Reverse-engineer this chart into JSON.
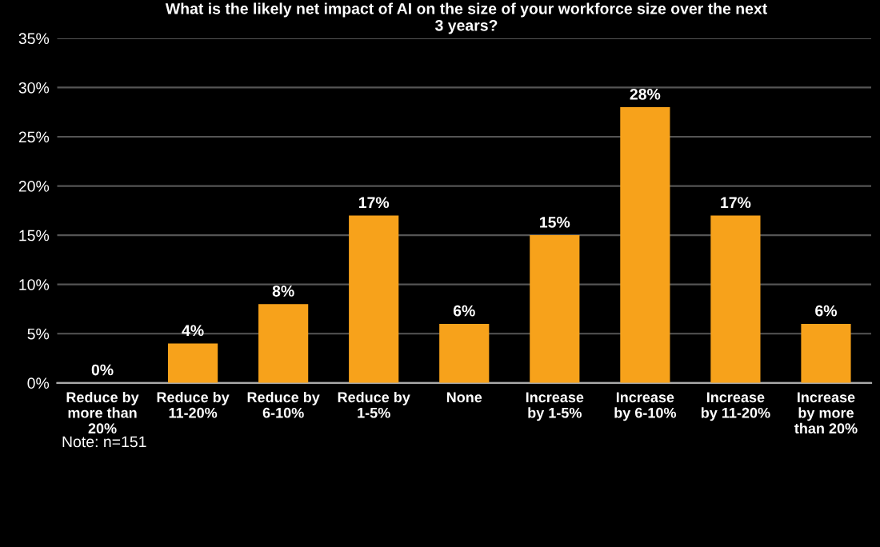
{
  "chart_data": {
    "type": "bar",
    "title": "What is the likely net impact of AI on the size of your workforce size over the next\n3 years?",
    "categories": [
      "Reduce by\nmore than\n20%",
      "Reduce by\n11-20%",
      "Reduce by\n6-10%",
      "Reduce by\n1-5%",
      "None",
      "Increase\nby 1-5%",
      "Increase\nby 6-10%",
      "Increase\nby 11-20%",
      "Increase\nby more\nthan 20%"
    ],
    "values": [
      0,
      4,
      8,
      17,
      6,
      15,
      28,
      17,
      6
    ],
    "value_labels": [
      "0%",
      "4%",
      "8%",
      "17%",
      "6%",
      "15%",
      "28%",
      "17%",
      "6%"
    ],
    "color": "#f7a21b",
    "ylim": [
      0,
      35
    ],
    "yticks": [
      {
        "value": 0,
        "label": "0%"
      },
      {
        "value": 5,
        "label": "5%"
      },
      {
        "value": 10,
        "label": "10%"
      },
      {
        "value": 15,
        "label": "15%"
      },
      {
        "value": 20,
        "label": "20%"
      },
      {
        "value": 25,
        "label": "25%"
      },
      {
        "value": 30,
        "label": "30%"
      },
      {
        "value": 35,
        "label": "35%"
      }
    ],
    "grid": "y",
    "annotations": [
      "Note: n=151"
    ]
  }
}
